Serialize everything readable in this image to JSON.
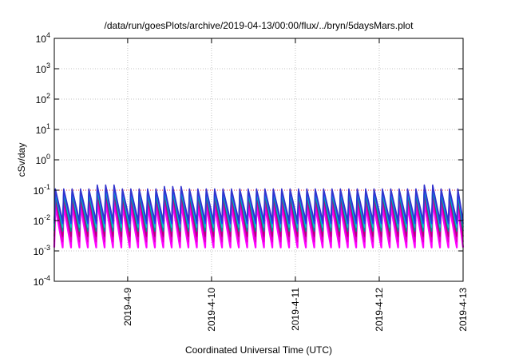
{
  "chart_data": {
    "type": "line",
    "title": "/data/run/goesPlots/archive/2019-04-13/00:00/flux/../bryn/5daysMars.plot",
    "xlabel": "Coordinated Universal Time (UTC)",
    "ylabel": "cSv/day",
    "yscale": "log",
    "ylim": [
      0.0001,
      10000
    ],
    "y_ticks": [
      {
        "value": 0.0001,
        "base": "10",
        "exp": "-4"
      },
      {
        "value": 0.001,
        "base": "10",
        "exp": "-3"
      },
      {
        "value": 0.01,
        "base": "10",
        "exp": "-2"
      },
      {
        "value": 0.1,
        "base": "10",
        "exp": "-1"
      },
      {
        "value": 1,
        "base": "10",
        "exp": "0"
      },
      {
        "value": 10,
        "base": "10",
        "exp": "1"
      },
      {
        "value": 100,
        "base": "10",
        "exp": "2"
      },
      {
        "value": 1000,
        "base": "10",
        "exp": "3"
      },
      {
        "value": 10000,
        "base": "10",
        "exp": "4"
      }
    ],
    "x_range": [
      "2019-04-08 03:00",
      "2019-04-13 00:00"
    ],
    "x_ticks": [
      "2019-4-9",
      "2019-4-10",
      "2019-4-11",
      "2019-4-12",
      "2019-4-13"
    ],
    "grid": true,
    "reference_line": {
      "y": 0.1,
      "color": "#ff0000",
      "style": "dotted"
    },
    "pattern": {
      "period_hours": 2.4,
      "peak_values": [
        0.03,
        0.045,
        0.06,
        0.075,
        0.09,
        0.1,
        0.11
      ],
      "trough_values": [
        0.0013,
        0.002,
        0.003,
        0.0045,
        0.006,
        0.008,
        0.01
      ],
      "peak_boost": [
        {
          "from": "2019-04-08 15:00",
          "to": "2019-04-08 22:00",
          "factor": 1.35
        },
        {
          "from": "2019-04-09 10:00",
          "to": "2019-04-09 15:00",
          "factor": 1.2
        },
        {
          "from": "2019-04-12 11:00",
          "to": "2019-04-12 15:00",
          "factor": 1.35
        },
        {
          "from": "2019-04-12 23:00",
          "to": "2019-04-13 00:00",
          "factor": 1.2
        }
      ]
    },
    "series_colors": [
      "#ff00ff",
      "#e000c8",
      "#b4007a",
      "#009090",
      "#00c8c8",
      "#1e3cff",
      "#3333cc"
    ]
  }
}
